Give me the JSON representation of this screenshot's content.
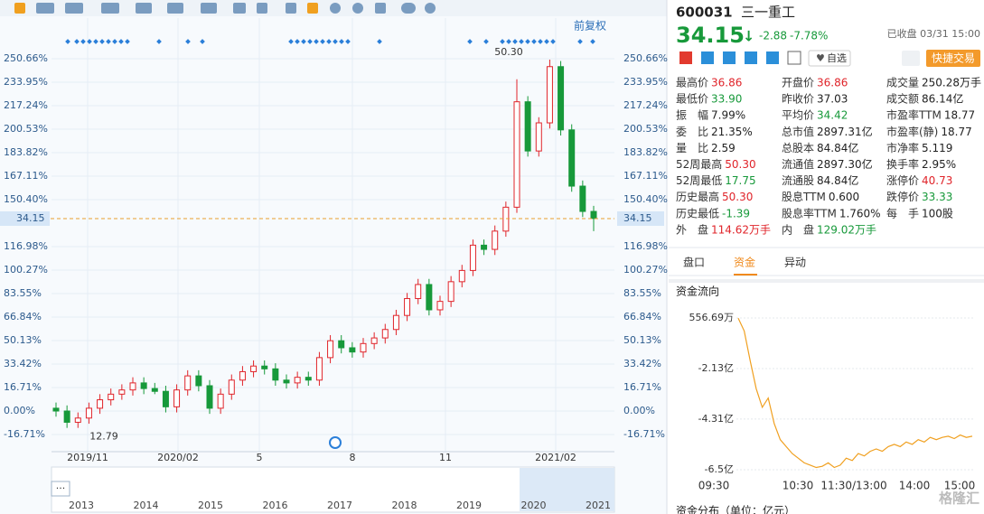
{
  "toolbar": {
    "adjust": "前复权"
  },
  "chart_data": {
    "type": "candlestick",
    "open": [
      2,
      0,
      -8,
      -5,
      2,
      8,
      12,
      15,
      20,
      16,
      14,
      3,
      15,
      25,
      18,
      2,
      12,
      22,
      28,
      32,
      30,
      22,
      20,
      24,
      22,
      38,
      50,
      45,
      42,
      48,
      52,
      58,
      68,
      80,
      90,
      72,
      78,
      92,
      100,
      118,
      115,
      128,
      145,
      220,
      185,
      205,
      245,
      200,
      160,
      142
    ],
    "high": [
      6,
      4,
      -1,
      6,
      12,
      16,
      19,
      24,
      24,
      20,
      18,
      19,
      29,
      29,
      22,
      16,
      26,
      32,
      36,
      36,
      34,
      26,
      28,
      28,
      42,
      54,
      54,
      49,
      52,
      56,
      62,
      72,
      84,
      94,
      94,
      82,
      96,
      104,
      122,
      122,
      132,
      149,
      236,
      224,
      209,
      250,
      249,
      204,
      164,
      146
    ],
    "low": [
      -4,
      -12,
      -12,
      -9,
      -2,
      4,
      8,
      11,
      12,
      12,
      -1,
      -1,
      11,
      14,
      -2,
      -2,
      8,
      18,
      24,
      26,
      18,
      16,
      16,
      18,
      18,
      34,
      41,
      38,
      38,
      44,
      48,
      54,
      64,
      76,
      68,
      68,
      74,
      88,
      96,
      111,
      111,
      124,
      141,
      181,
      181,
      201,
      196,
      156,
      138,
      128
    ],
    "close": [
      0,
      -8,
      -5,
      2,
      8,
      12,
      15,
      20,
      16,
      14,
      3,
      15,
      25,
      18,
      2,
      12,
      22,
      28,
      32,
      30,
      22,
      20,
      24,
      22,
      38,
      50,
      45,
      42,
      48,
      52,
      58,
      68,
      80,
      90,
      72,
      78,
      92,
      100,
      118,
      115,
      128,
      145,
      220,
      185,
      205,
      245,
      200,
      160,
      142,
      137
    ],
    "up_color": "#e0242a",
    "down_color": "#17993a",
    "ylim": [
      -25.7,
      266.7
    ],
    "yticks": [
      {
        "value": -16.71,
        "label": "-16.71%"
      },
      {
        "value": 0,
        "label": "0.00%"
      },
      {
        "value": 16.71,
        "label": "16.71%"
      },
      {
        "value": 33.42,
        "label": "33.42%"
      },
      {
        "value": 50.13,
        "label": "50.13%"
      },
      {
        "value": 66.84,
        "label": "66.84%"
      },
      {
        "value": 83.55,
        "label": "83.55%"
      },
      {
        "value": 100.27,
        "label": "100.27%"
      },
      {
        "value": 116.98,
        "label": "116.98%"
      },
      {
        "value": 150.4,
        "label": "150.40%"
      },
      {
        "value": 167.11,
        "label": "167.11%"
      },
      {
        "value": 183.82,
        "label": "183.82%"
      },
      {
        "value": 200.53,
        "label": "200.53%"
      },
      {
        "value": 217.24,
        "label": "217.24%"
      },
      {
        "value": 233.95,
        "label": "233.95%"
      },
      {
        "value": 250.66,
        "label": "250.66%"
      }
    ],
    "current": {
      "value": 136.9,
      "label": "34.15"
    },
    "x_labels": [
      "2019/11",
      "2020/02",
      "5",
      "8",
      "11",
      "2021/02"
    ],
    "annotations": [
      {
        "value": 250,
        "label": "50.30"
      },
      {
        "value": -12,
        "label": "12.79"
      }
    ],
    "grid": true,
    "navigator": [
      "2013",
      "2014",
      "2015",
      "2016",
      "2017",
      "2018",
      "2019",
      "2020",
      "2021"
    ]
  },
  "quote": {
    "code": "600031",
    "name": "三一重工",
    "price": "34.15",
    "change": "-2.88",
    "pct": "-7.78%",
    "status": "已收盘 03/31 15:00",
    "watch": "自选",
    "trade": "快捷交易"
  },
  "stats": [
    [
      {
        "label": "最高价",
        "value": "36.86",
        "color": "#e0242a"
      },
      {
        "label": "开盘价",
        "value": "36.86",
        "color": "#e0242a"
      },
      {
        "label": "成交量",
        "value": "250.28万手",
        "color": "#222"
      }
    ],
    [
      {
        "label": "最低价",
        "value": "33.90",
        "color": "#17993a"
      },
      {
        "label": "昨收价",
        "value": "37.03",
        "color": "#222"
      },
      {
        "label": "成交额",
        "value": "86.14亿",
        "color": "#222"
      }
    ],
    [
      {
        "label": "振　幅",
        "value": "7.99%",
        "color": "#222"
      },
      {
        "label": "平均价",
        "value": "34.42",
        "color": "#17993a"
      },
      {
        "label": "市盈率TTM",
        "value": "18.77",
        "color": "#222"
      }
    ],
    [
      {
        "label": "委　比",
        "value": "21.35%",
        "color": "#222"
      },
      {
        "label": "总市值",
        "value": "2897.31亿",
        "color": "#222"
      },
      {
        "label": "市盈率(静)",
        "value": "18.77",
        "color": "#222"
      }
    ],
    [
      {
        "label": "量　比",
        "value": "2.59",
        "color": "#222"
      },
      {
        "label": "总股本",
        "value": "84.84亿",
        "color": "#222"
      },
      {
        "label": "市净率",
        "value": "5.119",
        "color": "#222"
      }
    ],
    [
      {
        "label": "52周最高",
        "value": "50.30",
        "color": "#e0242a"
      },
      {
        "label": "流通值",
        "value": "2897.30亿",
        "color": "#222"
      },
      {
        "label": "换手率",
        "value": "2.95%",
        "color": "#222"
      }
    ],
    [
      {
        "label": "52周最低",
        "value": "17.75",
        "color": "#17993a"
      },
      {
        "label": "流通股",
        "value": "84.84亿",
        "color": "#222"
      },
      {
        "label": "涨停价",
        "value": "40.73",
        "color": "#e0242a"
      }
    ],
    [
      {
        "label": "历史最高",
        "value": "50.30",
        "color": "#e0242a"
      },
      {
        "label": "股息TTM",
        "value": "0.600",
        "color": "#222"
      },
      {
        "label": "跌停价",
        "value": "33.33",
        "color": "#17993a"
      }
    ],
    [
      {
        "label": "历史最低",
        "value": "-1.39",
        "color": "#17993a"
      },
      {
        "label": "股息率TTM",
        "value": "1.760%",
        "color": "#222"
      },
      {
        "label": "每　手",
        "value": "100股",
        "color": "#222"
      }
    ],
    [
      {
        "label": "外　盘",
        "value": "114.62万手",
        "color": "#e0242a"
      },
      {
        "label": "内　盘",
        "value": "129.02万手",
        "color": "#17993a"
      }
    ]
  ],
  "tabs": [
    "盘口",
    "资金",
    "异动"
  ],
  "flow": {
    "title": "资金流向",
    "type": "line",
    "color": "#f0a020",
    "values": [
      500,
      -5000,
      -18000,
      -30000,
      -38000,
      -34000,
      -45000,
      -52000,
      -55000,
      -58000,
      -60000,
      -62000,
      -63000,
      -64000,
      -63500,
      -62000,
      -64000,
      -63000,
      -60000,
      -61000,
      -58000,
      -59000,
      -57000,
      -56000,
      -57000,
      -55000,
      -54000,
      -55000,
      -53000,
      -54000,
      -52000,
      -53000,
      -51000,
      -52000,
      -51000,
      -50500,
      -51500,
      -50000,
      -51000,
      -50500
    ],
    "ylim": [
      -68100,
      3300
    ],
    "yticks": [
      {
        "value": 556.69,
        "label": "556.69万"
      },
      {
        "value": -21300,
        "label": "-2.13亿"
      },
      {
        "value": -43100,
        "label": "-4.31亿"
      },
      {
        "value": -65000,
        "label": "-6.5亿"
      }
    ],
    "x_labels": [
      "09:30",
      "10:30",
      "11:30/13:00",
      "14:00",
      "15:00"
    ]
  },
  "footer": "资金分布（单位：亿元）",
  "watermark": "格隆汇"
}
